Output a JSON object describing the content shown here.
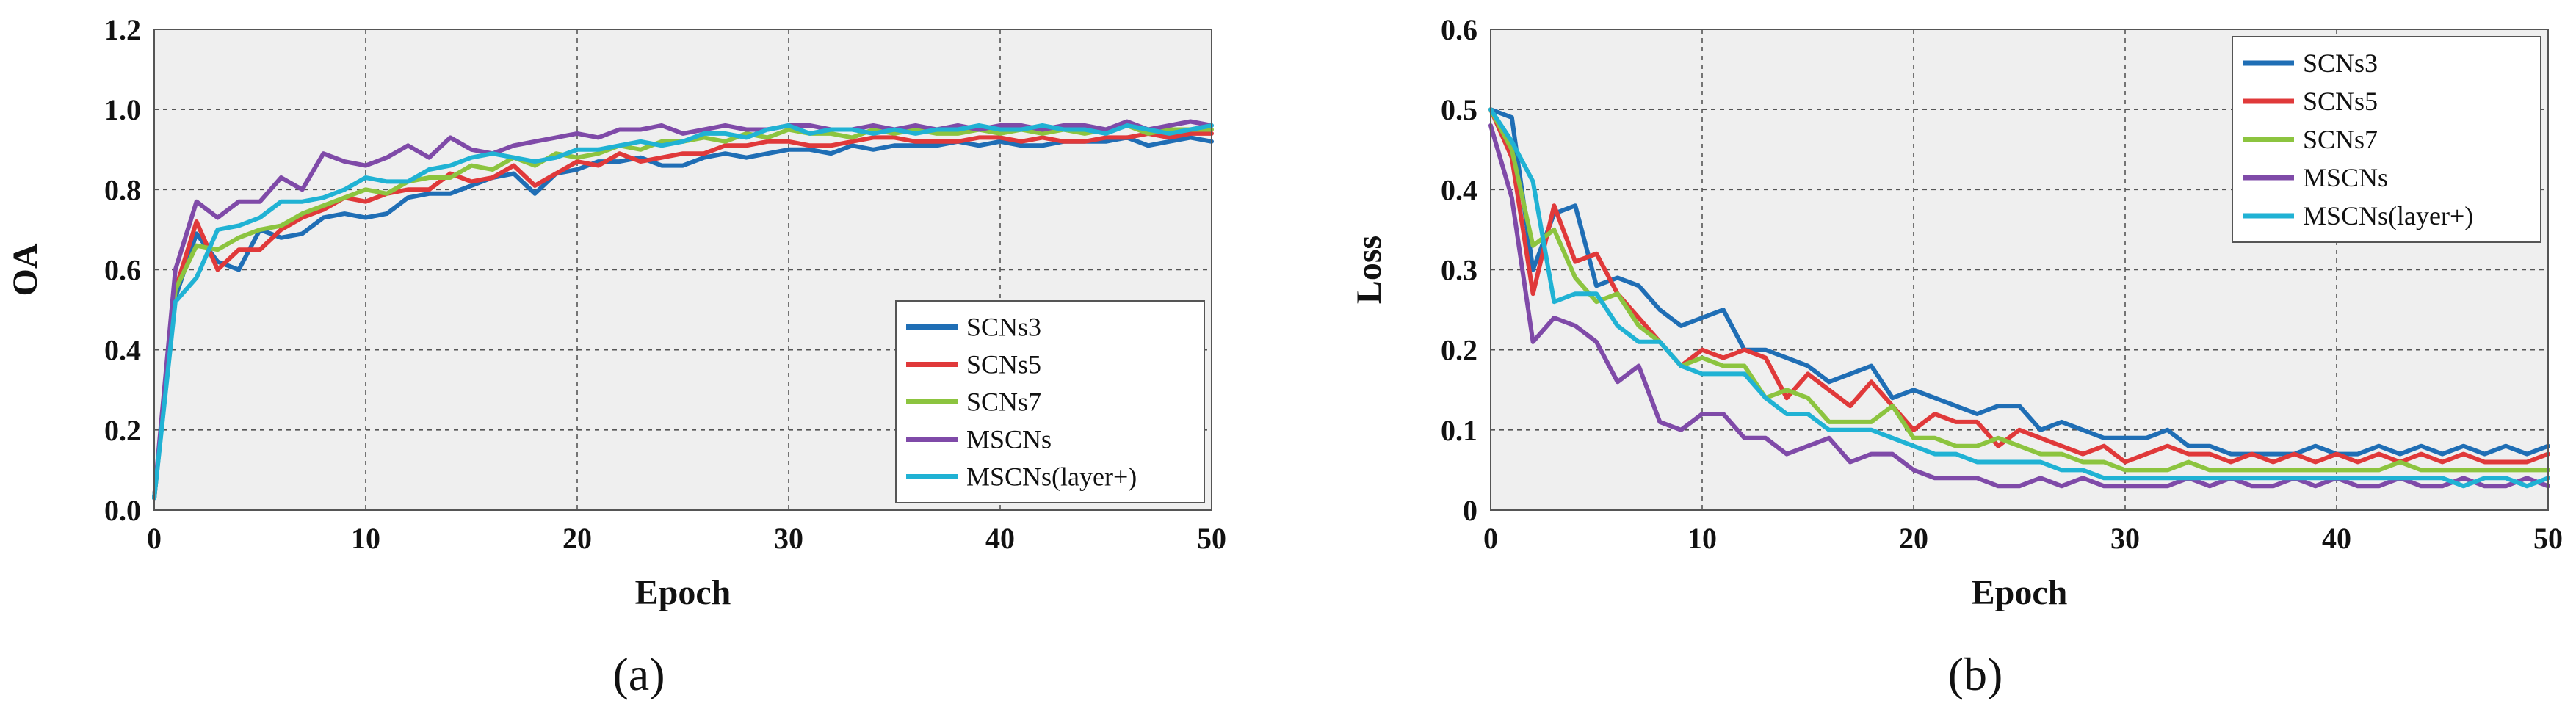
{
  "chart_data": [
    {
      "type": "line",
      "panel_label": "(a)",
      "xlabel": "Epoch",
      "ylabel": "OA",
      "xlim": [
        0,
        50
      ],
      "ylim": [
        0,
        1.2
      ],
      "xticks": [
        0,
        10,
        20,
        30,
        40,
        50
      ],
      "yticks": [
        0.0,
        0.2,
        0.4,
        0.6,
        0.8,
        1.0,
        1.2
      ],
      "ytick_labels": [
        "0.0",
        "0.2",
        "0.4",
        "0.6",
        "0.8",
        "1.0",
        "1.2"
      ],
      "xtick_labels": [
        "0",
        "10",
        "20",
        "30",
        "40",
        "50"
      ],
      "grid": true,
      "legend_position": "bottom-right",
      "x": [
        0,
        1,
        2,
        3,
        4,
        5,
        6,
        7,
        8,
        9,
        10,
        11,
        12,
        13,
        14,
        15,
        16,
        17,
        18,
        19,
        20,
        21,
        22,
        23,
        24,
        25,
        26,
        27,
        28,
        29,
        30,
        31,
        32,
        33,
        34,
        35,
        36,
        37,
        38,
        39,
        40,
        41,
        42,
        43,
        44,
        45,
        46,
        47,
        48,
        49,
        50
      ],
      "series": [
        {
          "name": "SCNs3",
          "color": "#1f6eb5",
          "values": [
            0.03,
            0.53,
            0.69,
            0.62,
            0.6,
            0.7,
            0.68,
            0.69,
            0.73,
            0.74,
            0.73,
            0.74,
            0.78,
            0.79,
            0.79,
            0.81,
            0.83,
            0.84,
            0.79,
            0.84,
            0.85,
            0.87,
            0.87,
            0.88,
            0.86,
            0.86,
            0.88,
            0.89,
            0.88,
            0.89,
            0.9,
            0.9,
            0.89,
            0.91,
            0.9,
            0.91,
            0.91,
            0.91,
            0.92,
            0.91,
            0.92,
            0.91,
            0.91,
            0.92,
            0.92,
            0.92,
            0.93,
            0.91,
            0.92,
            0.93,
            0.92
          ]
        },
        {
          "name": "SCNs5",
          "color": "#e0393a",
          "values": [
            0.03,
            0.55,
            0.72,
            0.6,
            0.65,
            0.65,
            0.7,
            0.73,
            0.75,
            0.78,
            0.77,
            0.79,
            0.8,
            0.8,
            0.84,
            0.82,
            0.83,
            0.86,
            0.81,
            0.84,
            0.87,
            0.86,
            0.89,
            0.87,
            0.88,
            0.89,
            0.89,
            0.91,
            0.91,
            0.92,
            0.92,
            0.91,
            0.91,
            0.92,
            0.93,
            0.93,
            0.92,
            0.92,
            0.92,
            0.93,
            0.93,
            0.92,
            0.93,
            0.92,
            0.92,
            0.93,
            0.93,
            0.94,
            0.93,
            0.94,
            0.94
          ]
        },
        {
          "name": "SCNs7",
          "color": "#8cc43f",
          "values": [
            0.03,
            0.55,
            0.66,
            0.65,
            0.68,
            0.7,
            0.71,
            0.74,
            0.76,
            0.78,
            0.8,
            0.79,
            0.82,
            0.83,
            0.83,
            0.86,
            0.85,
            0.88,
            0.86,
            0.89,
            0.88,
            0.89,
            0.91,
            0.9,
            0.92,
            0.92,
            0.93,
            0.92,
            0.94,
            0.93,
            0.95,
            0.94,
            0.94,
            0.93,
            0.95,
            0.94,
            0.95,
            0.94,
            0.94,
            0.95,
            0.94,
            0.95,
            0.94,
            0.95,
            0.94,
            0.95,
            0.96,
            0.94,
            0.95,
            0.95,
            0.95
          ]
        },
        {
          "name": "MSCNs",
          "color": "#7f4aa8",
          "values": [
            0.03,
            0.6,
            0.77,
            0.73,
            0.77,
            0.77,
            0.83,
            0.8,
            0.89,
            0.87,
            0.86,
            0.88,
            0.91,
            0.88,
            0.93,
            0.9,
            0.89,
            0.91,
            0.92,
            0.93,
            0.94,
            0.93,
            0.95,
            0.95,
            0.96,
            0.94,
            0.95,
            0.96,
            0.95,
            0.95,
            0.96,
            0.96,
            0.95,
            0.95,
            0.96,
            0.95,
            0.96,
            0.95,
            0.96,
            0.95,
            0.96,
            0.96,
            0.95,
            0.96,
            0.96,
            0.95,
            0.97,
            0.95,
            0.96,
            0.97,
            0.96
          ]
        },
        {
          "name": "MSCNs(layer+)",
          "color": "#20b2d4",
          "values": [
            0.03,
            0.52,
            0.58,
            0.7,
            0.71,
            0.73,
            0.77,
            0.77,
            0.78,
            0.8,
            0.83,
            0.82,
            0.82,
            0.85,
            0.86,
            0.88,
            0.89,
            0.88,
            0.87,
            0.88,
            0.9,
            0.9,
            0.91,
            0.92,
            0.91,
            0.92,
            0.94,
            0.94,
            0.93,
            0.95,
            0.96,
            0.94,
            0.95,
            0.95,
            0.94,
            0.95,
            0.94,
            0.95,
            0.95,
            0.96,
            0.95,
            0.95,
            0.96,
            0.95,
            0.95,
            0.94,
            0.96,
            0.95,
            0.94,
            0.95,
            0.96
          ]
        }
      ]
    },
    {
      "type": "line",
      "panel_label": "(b)",
      "xlabel": "Epoch",
      "ylabel": "Loss",
      "xlim": [
        0,
        50
      ],
      "ylim": [
        0,
        0.6
      ],
      "xticks": [
        0,
        10,
        20,
        30,
        40,
        50
      ],
      "yticks": [
        0,
        0.1,
        0.2,
        0.3,
        0.4,
        0.5,
        0.6
      ],
      "ytick_labels": [
        "0",
        "0.1",
        "0.2",
        "0.3",
        "0.4",
        "0.5",
        "0.6"
      ],
      "xtick_labels": [
        "0",
        "10",
        "20",
        "30",
        "40",
        "50"
      ],
      "grid": true,
      "legend_position": "top-right",
      "x": [
        0,
        1,
        2,
        3,
        4,
        5,
        6,
        7,
        8,
        9,
        10,
        11,
        12,
        13,
        14,
        15,
        16,
        17,
        18,
        19,
        20,
        21,
        22,
        23,
        24,
        25,
        26,
        27,
        28,
        29,
        30,
        31,
        32,
        33,
        34,
        35,
        36,
        37,
        38,
        39,
        40,
        41,
        42,
        43,
        44,
        45,
        46,
        47,
        48,
        49,
        50
      ],
      "series": [
        {
          "name": "SCNs3",
          "color": "#1f6eb5",
          "values": [
            0.5,
            0.49,
            0.3,
            0.37,
            0.38,
            0.28,
            0.29,
            0.28,
            0.25,
            0.23,
            0.24,
            0.25,
            0.2,
            0.2,
            0.19,
            0.18,
            0.16,
            0.17,
            0.18,
            0.14,
            0.15,
            0.14,
            0.13,
            0.12,
            0.13,
            0.13,
            0.1,
            0.11,
            0.1,
            0.09,
            0.09,
            0.09,
            0.1,
            0.08,
            0.08,
            0.07,
            0.07,
            0.07,
            0.07,
            0.08,
            0.07,
            0.07,
            0.08,
            0.07,
            0.08,
            0.07,
            0.08,
            0.07,
            0.08,
            0.07,
            0.08
          ]
        },
        {
          "name": "SCNs5",
          "color": "#e0393a",
          "values": [
            0.5,
            0.44,
            0.27,
            0.38,
            0.31,
            0.32,
            0.27,
            0.24,
            0.21,
            0.18,
            0.2,
            0.19,
            0.2,
            0.19,
            0.14,
            0.17,
            0.15,
            0.13,
            0.16,
            0.13,
            0.1,
            0.12,
            0.11,
            0.11,
            0.08,
            0.1,
            0.09,
            0.08,
            0.07,
            0.08,
            0.06,
            0.07,
            0.08,
            0.07,
            0.07,
            0.06,
            0.07,
            0.06,
            0.07,
            0.06,
            0.07,
            0.06,
            0.07,
            0.06,
            0.07,
            0.06,
            0.07,
            0.06,
            0.06,
            0.06,
            0.07
          ]
        },
        {
          "name": "SCNs7",
          "color": "#8cc43f",
          "values": [
            0.5,
            0.45,
            0.33,
            0.35,
            0.29,
            0.26,
            0.27,
            0.23,
            0.21,
            0.18,
            0.19,
            0.18,
            0.18,
            0.14,
            0.15,
            0.14,
            0.11,
            0.11,
            0.11,
            0.13,
            0.09,
            0.09,
            0.08,
            0.08,
            0.09,
            0.08,
            0.07,
            0.07,
            0.06,
            0.06,
            0.05,
            0.05,
            0.05,
            0.06,
            0.05,
            0.05,
            0.05,
            0.05,
            0.05,
            0.05,
            0.05,
            0.05,
            0.05,
            0.06,
            0.05,
            0.05,
            0.05,
            0.05,
            0.05,
            0.05,
            0.05
          ]
        },
        {
          "name": "MSCNs",
          "color": "#7f4aa8",
          "values": [
            0.48,
            0.39,
            0.21,
            0.24,
            0.23,
            0.21,
            0.16,
            0.18,
            0.11,
            0.1,
            0.12,
            0.12,
            0.09,
            0.09,
            0.07,
            0.08,
            0.09,
            0.06,
            0.07,
            0.07,
            0.05,
            0.04,
            0.04,
            0.04,
            0.03,
            0.03,
            0.04,
            0.03,
            0.04,
            0.03,
            0.03,
            0.03,
            0.03,
            0.04,
            0.03,
            0.04,
            0.03,
            0.03,
            0.04,
            0.03,
            0.04,
            0.03,
            0.03,
            0.04,
            0.03,
            0.03,
            0.04,
            0.03,
            0.03,
            0.04,
            0.03
          ]
        },
        {
          "name": "MSCNs(layer+)",
          "color": "#20b2d4",
          "values": [
            0.5,
            0.46,
            0.41,
            0.26,
            0.27,
            0.27,
            0.23,
            0.21,
            0.21,
            0.18,
            0.17,
            0.17,
            0.17,
            0.14,
            0.12,
            0.12,
            0.1,
            0.1,
            0.1,
            0.09,
            0.08,
            0.07,
            0.07,
            0.06,
            0.06,
            0.06,
            0.06,
            0.05,
            0.05,
            0.04,
            0.04,
            0.04,
            0.04,
            0.04,
            0.04,
            0.04,
            0.04,
            0.04,
            0.04,
            0.04,
            0.04,
            0.04,
            0.04,
            0.04,
            0.04,
            0.04,
            0.03,
            0.04,
            0.04,
            0.03,
            0.04
          ]
        }
      ]
    }
  ]
}
